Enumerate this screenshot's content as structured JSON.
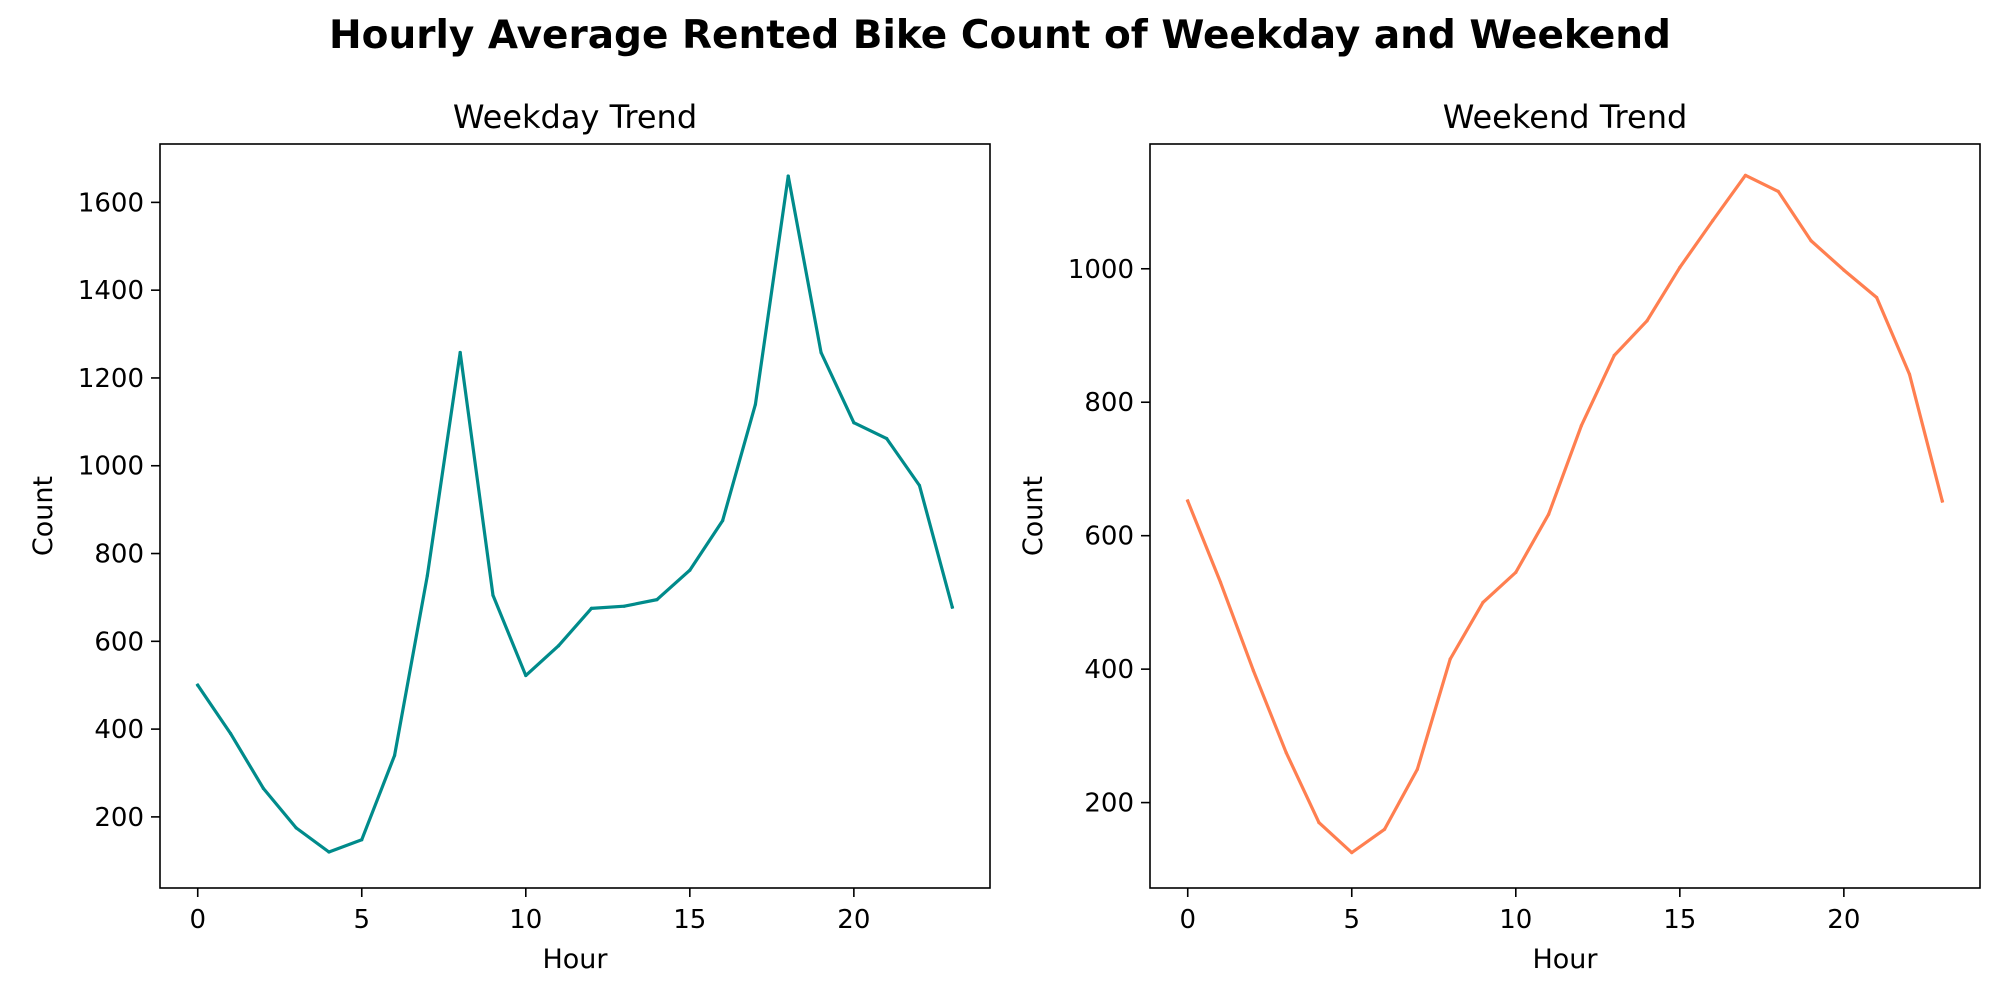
{
  "figure": {
    "title": "Hourly Average Rented Bike Count of Weekday and Weekend"
  },
  "chart_data": [
    {
      "type": "line",
      "title": "Weekday Trend",
      "xlabel": "Hour",
      "ylabel": "Count",
      "xlim": [
        -1.15,
        24.15
      ],
      "ylim": [
        38,
        1733
      ],
      "xticks": [
        0,
        5,
        10,
        15,
        20
      ],
      "yticks": [
        200,
        400,
        600,
        800,
        1000,
        1200,
        1400,
        1600
      ],
      "grid": false,
      "color": "#008b8b",
      "series": [
        {
          "x": [
            0,
            1,
            2,
            3,
            4,
            5,
            6,
            7,
            8,
            9,
            10,
            11,
            12,
            13,
            14,
            15,
            16,
            17,
            18,
            19,
            20,
            21,
            22,
            23
          ],
          "y": [
            500,
            390,
            265,
            175,
            120,
            148,
            340,
            750,
            1258,
            705,
            522,
            590,
            675,
            680,
            695,
            762,
            875,
            1140,
            1660,
            1258,
            1098,
            1062,
            955,
            678
          ]
        }
      ]
    },
    {
      "type": "line",
      "title": "Weekend Trend",
      "xlabel": "Hour",
      "ylabel": "Count",
      "xlim": [
        -1.15,
        24.15
      ],
      "ylim": [
        72,
        1187
      ],
      "xticks": [
        0,
        5,
        10,
        15,
        20
      ],
      "yticks": [
        200,
        400,
        600,
        800,
        1000
      ],
      "grid": false,
      "color": "#ff7f50",
      "series": [
        {
          "x": [
            0,
            1,
            2,
            3,
            4,
            5,
            6,
            7,
            8,
            9,
            10,
            11,
            12,
            13,
            14,
            15,
            16,
            17,
            18,
            19,
            20,
            21,
            22,
            23
          ],
          "y": [
            652,
            530,
            398,
            275,
            170,
            125,
            160,
            250,
            415,
            500,
            545,
            632,
            765,
            870,
            922,
            1002,
            1072,
            1140,
            1116,
            1042,
            998,
            957,
            842,
            652
          ]
        }
      ]
    }
  ]
}
